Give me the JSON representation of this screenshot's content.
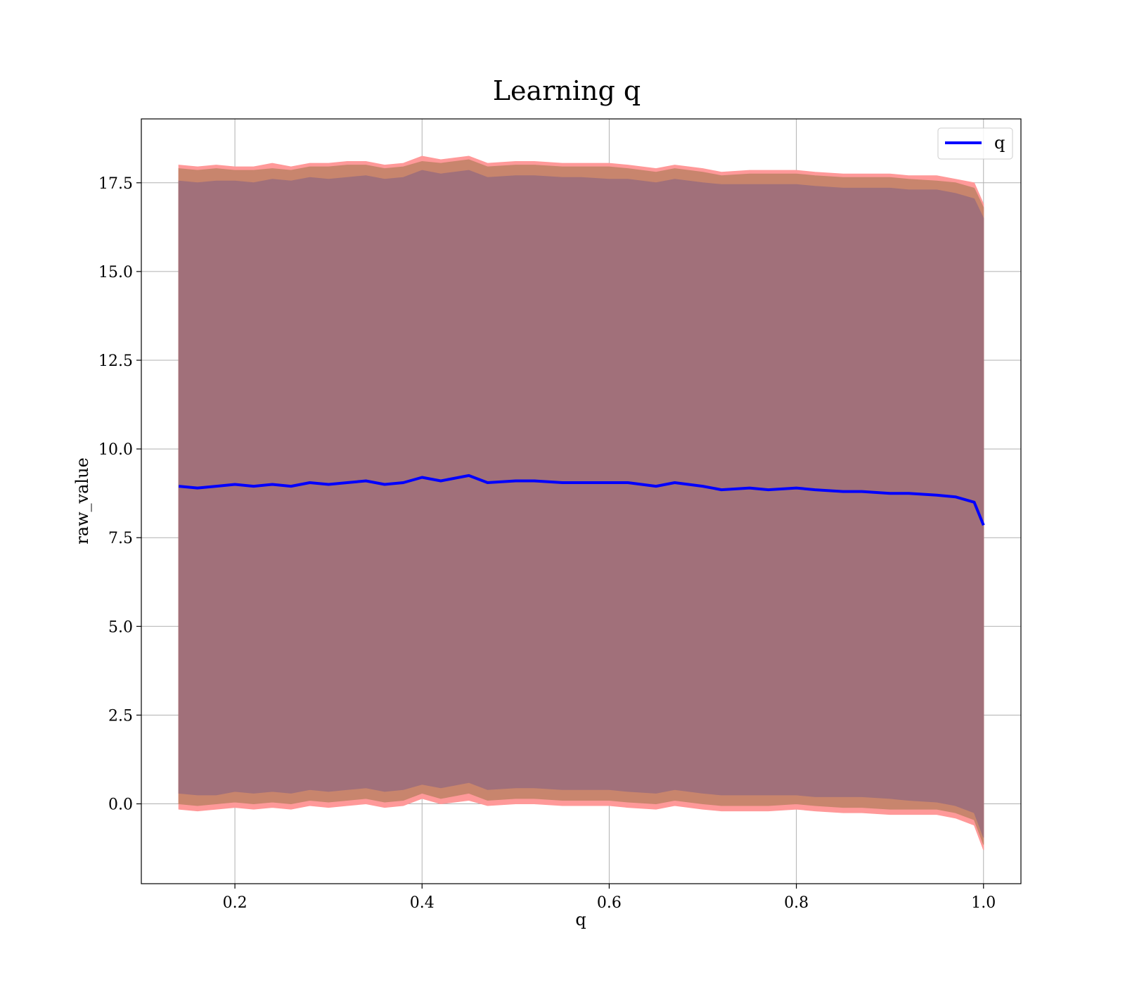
{
  "chart_data": {
    "type": "line",
    "title": "Learning q",
    "xlabel": "q",
    "ylabel": "raw_value",
    "xlim": [
      0.1,
      1.04
    ],
    "ylim": [
      -2.25,
      19.3
    ],
    "xticks": [
      0.2,
      0.4,
      0.6,
      0.8,
      1.0
    ],
    "xtick_labels": [
      "0.2",
      "0.4",
      "0.6",
      "0.8",
      "1.0"
    ],
    "yticks": [
      0.0,
      2.5,
      5.0,
      7.5,
      10.0,
      12.5,
      15.0,
      17.5
    ],
    "ytick_labels": [
      "0.0",
      "2.5",
      "5.0",
      "7.5",
      "10.0",
      "12.5",
      "15.0",
      "17.5"
    ],
    "grid": true,
    "legend": {
      "position": "top-right",
      "entries": [
        {
          "label": "q",
          "color": "#0000ff"
        }
      ]
    },
    "x": [
      0.14,
      0.16,
      0.18,
      0.2,
      0.22,
      0.24,
      0.26,
      0.28,
      0.3,
      0.32,
      0.34,
      0.36,
      0.38,
      0.4,
      0.42,
      0.45,
      0.47,
      0.5,
      0.52,
      0.55,
      0.57,
      0.6,
      0.62,
      0.65,
      0.67,
      0.7,
      0.72,
      0.75,
      0.77,
      0.8,
      0.82,
      0.85,
      0.87,
      0.9,
      0.92,
      0.95,
      0.97,
      0.99,
      1.0
    ],
    "series": [
      {
        "name": "q",
        "color": "#0000ff",
        "values": [
          8.95,
          8.9,
          8.95,
          9.0,
          8.95,
          9.0,
          8.95,
          9.05,
          9.0,
          9.05,
          9.1,
          9.0,
          9.05,
          9.2,
          9.1,
          9.25,
          9.05,
          9.1,
          9.1,
          9.05,
          9.05,
          9.05,
          9.05,
          8.95,
          9.05,
          8.95,
          8.85,
          8.9,
          8.85,
          8.9,
          8.85,
          8.8,
          8.8,
          8.75,
          8.75,
          8.7,
          8.65,
          8.5,
          7.85
        ]
      }
    ],
    "bands": [
      {
        "kind": "outer",
        "color": "#ff9999",
        "upper": [
          18.0,
          17.95,
          18.0,
          17.95,
          17.95,
          18.05,
          17.95,
          18.05,
          18.05,
          18.1,
          18.1,
          18.0,
          18.05,
          18.25,
          18.15,
          18.25,
          18.05,
          18.1,
          18.1,
          18.05,
          18.05,
          18.05,
          18.0,
          17.9,
          18.0,
          17.9,
          17.8,
          17.85,
          17.85,
          17.85,
          17.8,
          17.75,
          17.75,
          17.75,
          17.7,
          17.7,
          17.6,
          17.5,
          16.9
        ],
        "lower": [
          -0.15,
          -0.2,
          -0.15,
          -0.1,
          -0.15,
          -0.1,
          -0.15,
          -0.05,
          -0.1,
          -0.05,
          0.0,
          -0.1,
          -0.05,
          0.15,
          0.0,
          0.1,
          -0.05,
          0.0,
          0.0,
          -0.05,
          -0.05,
          -0.05,
          -0.1,
          -0.15,
          -0.05,
          -0.15,
          -0.2,
          -0.2,
          -0.2,
          -0.15,
          -0.2,
          -0.25,
          -0.25,
          -0.3,
          -0.3,
          -0.3,
          -0.4,
          -0.6,
          -1.3
        ]
      },
      {
        "kind": "middle",
        "color": "#c8856d",
        "upper": [
          17.9,
          17.85,
          17.9,
          17.85,
          17.85,
          17.9,
          17.85,
          17.95,
          17.95,
          18.0,
          18.0,
          17.9,
          17.95,
          18.1,
          18.05,
          18.15,
          17.95,
          18.0,
          18.0,
          17.95,
          17.95,
          17.95,
          17.9,
          17.8,
          17.9,
          17.8,
          17.7,
          17.75,
          17.75,
          17.75,
          17.7,
          17.65,
          17.65,
          17.65,
          17.6,
          17.55,
          17.5,
          17.35,
          16.8
        ],
        "lower": [
          0.0,
          -0.05,
          0.0,
          0.05,
          0.0,
          0.05,
          0.0,
          0.1,
          0.05,
          0.1,
          0.15,
          0.05,
          0.1,
          0.3,
          0.15,
          0.3,
          0.1,
          0.15,
          0.15,
          0.1,
          0.1,
          0.1,
          0.05,
          0.0,
          0.1,
          0.0,
          -0.05,
          -0.05,
          -0.05,
          0.0,
          -0.05,
          -0.1,
          -0.1,
          -0.15,
          -0.15,
          -0.15,
          -0.25,
          -0.45,
          -1.15
        ]
      },
      {
        "kind": "inner",
        "color": "#a1707a",
        "upper": [
          17.55,
          17.5,
          17.55,
          17.55,
          17.5,
          17.6,
          17.55,
          17.65,
          17.6,
          17.65,
          17.7,
          17.6,
          17.65,
          17.85,
          17.75,
          17.85,
          17.65,
          17.7,
          17.7,
          17.65,
          17.65,
          17.6,
          17.6,
          17.5,
          17.6,
          17.5,
          17.45,
          17.45,
          17.45,
          17.45,
          17.4,
          17.35,
          17.35,
          17.35,
          17.3,
          17.3,
          17.2,
          17.05,
          16.5
        ],
        "lower": [
          0.3,
          0.25,
          0.25,
          0.35,
          0.3,
          0.35,
          0.3,
          0.4,
          0.35,
          0.4,
          0.45,
          0.35,
          0.4,
          0.55,
          0.45,
          0.6,
          0.4,
          0.45,
          0.45,
          0.4,
          0.4,
          0.4,
          0.35,
          0.3,
          0.4,
          0.3,
          0.25,
          0.25,
          0.25,
          0.25,
          0.2,
          0.2,
          0.2,
          0.15,
          0.1,
          0.05,
          -0.05,
          -0.25,
          -0.95
        ]
      }
    ]
  }
}
